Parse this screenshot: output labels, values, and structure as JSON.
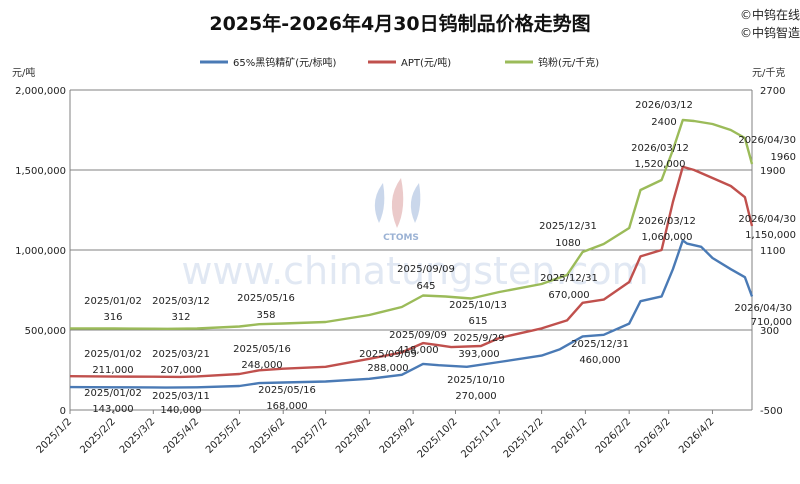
{
  "chart_data": {
    "type": "line",
    "title": "2025年-2026年4月30日钨制品价格走势图",
    "brand": [
      "©中钨在线",
      "©中钨智造"
    ],
    "watermark": "www.chinatungsten.com",
    "watermark_logo": "CTOMS",
    "left_axis": {
      "unit": "元/吨",
      "ylim": [
        0,
        2000000
      ],
      "ticks": [
        0,
        500000,
        1000000,
        1500000,
        2000000
      ],
      "tick_labels": [
        "0",
        "500,000",
        "1,000,000",
        "1,500,000",
        "2,000,000"
      ]
    },
    "right_axis": {
      "unit": "元/千克",
      "ylim": [
        -500,
        2700
      ],
      "ticks": [
        -500,
        300,
        1100,
        1900,
        2700
      ],
      "tick_labels": [
        "-500",
        "300",
        "1100",
        "1900",
        "2700"
      ]
    },
    "x_tick_labels": [
      "2025/1/2",
      "2025/2/2",
      "2025/3/2",
      "2025/4/2",
      "2025/5/2",
      "2025/6/2",
      "2025/7/2",
      "2025/8/2",
      "2025/9/2",
      "2025/10/2",
      "2025/11/2",
      "2025/12/2",
      "2026/1/2",
      "2026/2/2",
      "2026/3/2",
      "2026/4/2"
    ],
    "grid": "horizontal",
    "legend_position": "top",
    "series": [
      {
        "name": "65%黑钨精矿(元/标吨)",
        "axis": "left",
        "color": "#4a7ab5",
        "points": [
          [
            "2025/1/2",
            143000
          ],
          [
            "2025/2/2",
            142000
          ],
          [
            "2025/3/2",
            141000
          ],
          [
            "2025/3/11",
            140000
          ],
          [
            "2025/4/2",
            142000
          ],
          [
            "2025/5/2",
            150000
          ],
          [
            "2025/5/16",
            168000
          ],
          [
            "2025/6/2",
            172000
          ],
          [
            "2025/7/2",
            178000
          ],
          [
            "2025/8/2",
            195000
          ],
          [
            "2025/8/25",
            220000
          ],
          [
            "2025/9/9",
            288000
          ],
          [
            "2025/9/20",
            280000
          ],
          [
            "2025/10/10",
            270000
          ],
          [
            "2025/11/2",
            300000
          ],
          [
            "2025/12/2",
            340000
          ],
          [
            "2025/12/15",
            380000
          ],
          [
            "2025/12/31",
            460000
          ],
          [
            "2026/1/15",
            470000
          ],
          [
            "2026/2/2",
            540000
          ],
          [
            "2026/2/10",
            680000
          ],
          [
            "2026/2/25",
            710000
          ],
          [
            "2026/3/5",
            880000
          ],
          [
            "2026/3/12",
            1060000
          ],
          [
            "2026/3/15",
            1040000
          ],
          [
            "2026/3/25",
            1020000
          ],
          [
            "2026/4/2",
            950000
          ],
          [
            "2026/4/15",
            880000
          ],
          [
            "2026/4/25",
            830000
          ],
          [
            "2026/4/30",
            710000
          ]
        ],
        "labels": [
          {
            "date": "2025/01/02",
            "value": "143,000"
          },
          {
            "date": "2025/03/11",
            "value": "140,000"
          },
          {
            "date": "2025/05/16",
            "value": "168,000"
          },
          {
            "date": "2025/09/09",
            "value": "288,000"
          },
          {
            "date": "2025/10/10",
            "value": "270,000"
          },
          {
            "date": "2025/12/31",
            "value": "460,000"
          },
          {
            "date": "2026/03/12",
            "value": "1,060,000"
          },
          {
            "date": "2026/04/30",
            "value": "710,000"
          }
        ]
      },
      {
        "name": "APT(元/吨)",
        "axis": "left",
        "color": "#c0504d",
        "points": [
          [
            "2025/1/2",
            211000
          ],
          [
            "2025/2/2",
            209000
          ],
          [
            "2025/3/2",
            208000
          ],
          [
            "2025/3/21",
            207000
          ],
          [
            "2025/4/2",
            210000
          ],
          [
            "2025/5/2",
            225000
          ],
          [
            "2025/5/16",
            248000
          ],
          [
            "2025/6/2",
            258000
          ],
          [
            "2025/7/2",
            270000
          ],
          [
            "2025/8/2",
            320000
          ],
          [
            "2025/8/25",
            360000
          ],
          [
            "2025/9/9",
            418000
          ],
          [
            "2025/9/20",
            405000
          ],
          [
            "2025/9/29",
            393000
          ],
          [
            "2025/10/20",
            400000
          ],
          [
            "2025/11/2",
            450000
          ],
          [
            "2025/12/2",
            510000
          ],
          [
            "2025/12/20",
            560000
          ],
          [
            "2025/12/31",
            670000
          ],
          [
            "2026/1/15",
            690000
          ],
          [
            "2026/2/2",
            800000
          ],
          [
            "2026/2/10",
            960000
          ],
          [
            "2026/2/25",
            1000000
          ],
          [
            "2026/3/5",
            1300000
          ],
          [
            "2026/3/12",
            1520000
          ],
          [
            "2026/3/20",
            1500000
          ],
          [
            "2026/4/2",
            1450000
          ],
          [
            "2026/4/15",
            1400000
          ],
          [
            "2026/4/25",
            1330000
          ],
          [
            "2026/4/30",
            1150000
          ]
        ],
        "labels": [
          {
            "date": "2025/01/02",
            "value": "211,000"
          },
          {
            "date": "2025/03/21",
            "value": "207,000"
          },
          {
            "date": "2025/05/16",
            "value": "248,000"
          },
          {
            "date": "2025/09/09",
            "value": "418,000"
          },
          {
            "date": "2025/9/29",
            "value": "393,000"
          },
          {
            "date": "2025/12/31",
            "value": "670,000"
          },
          {
            "date": "2026/03/12",
            "value": "1,520,000"
          },
          {
            "date": "2026/04/30",
            "value": "1,150,000"
          }
        ]
      },
      {
        "name": "钨粉(元/千克)",
        "axis": "right",
        "color": "#9bbb59",
        "points": [
          [
            "2025/1/2",
            316
          ],
          [
            "2025/2/2",
            315
          ],
          [
            "2025/3/2",
            313
          ],
          [
            "2025/3/12",
            312
          ],
          [
            "2025/4/2",
            315
          ],
          [
            "2025/5/2",
            335
          ],
          [
            "2025/5/16",
            358
          ],
          [
            "2025/6/2",
            365
          ],
          [
            "2025/7/2",
            380
          ],
          [
            "2025/8/2",
            450
          ],
          [
            "2025/8/25",
            530
          ],
          [
            "2025/9/9",
            645
          ],
          [
            "2025/9/25",
            635
          ],
          [
            "2025/10/13",
            615
          ],
          [
            "2025/11/2",
            680
          ],
          [
            "2025/12/2",
            760
          ],
          [
            "2025/12/20",
            850
          ],
          [
            "2025/12/31",
            1080
          ],
          [
            "2026/1/15",
            1160
          ],
          [
            "2026/2/2",
            1320
          ],
          [
            "2026/2/10",
            1700
          ],
          [
            "2026/2/25",
            1800
          ],
          [
            "2026/3/5",
            2100
          ],
          [
            "2026/3/12",
            2400
          ],
          [
            "2026/3/20",
            2390
          ],
          [
            "2026/4/2",
            2360
          ],
          [
            "2026/4/15",
            2300
          ],
          [
            "2026/4/25",
            2220
          ],
          [
            "2026/4/30",
            1960
          ]
        ],
        "labels": [
          {
            "date": "2025/01/02",
            "value": "316"
          },
          {
            "date": "2025/03/12",
            "value": "312"
          },
          {
            "date": "2025/05/16",
            "value": "358"
          },
          {
            "date": "2025/09/09",
            "value": "645"
          },
          {
            "date": "2025/10/13",
            "value": "615"
          },
          {
            "date": "2025/12/31",
            "value": "1080"
          },
          {
            "date": "2026/03/12",
            "value": "2400"
          },
          {
            "date": "2026/04/30",
            "value": "1960"
          }
        ]
      }
    ]
  }
}
